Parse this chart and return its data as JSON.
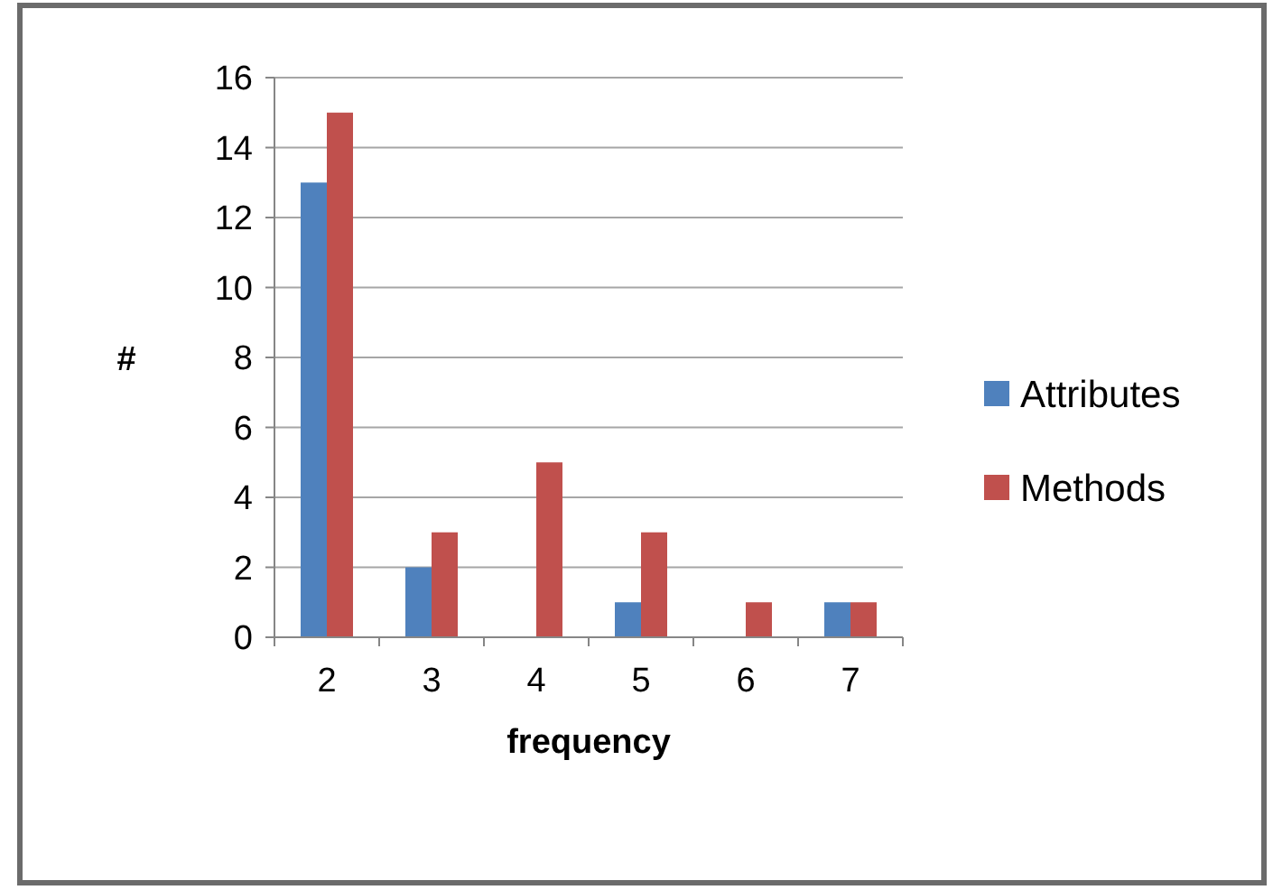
{
  "chart_data": {
    "type": "bar",
    "ylabel": "#",
    "xlabel": "frequency",
    "categories": [
      "2",
      "3",
      "4",
      "5",
      "6",
      "7"
    ],
    "series": [
      {
        "name": "Attributes",
        "color": "#4f81bd",
        "values": [
          13,
          2,
          0,
          1,
          0,
          1
        ]
      },
      {
        "name": "Methods",
        "color": "#c0504d",
        "values": [
          15,
          3,
          5,
          3,
          1,
          1
        ]
      }
    ],
    "ylim": [
      0,
      16
    ],
    "yticks": [
      0,
      2,
      4,
      6,
      8,
      10,
      12,
      14,
      16
    ],
    "grid": "y",
    "legend": "right"
  }
}
